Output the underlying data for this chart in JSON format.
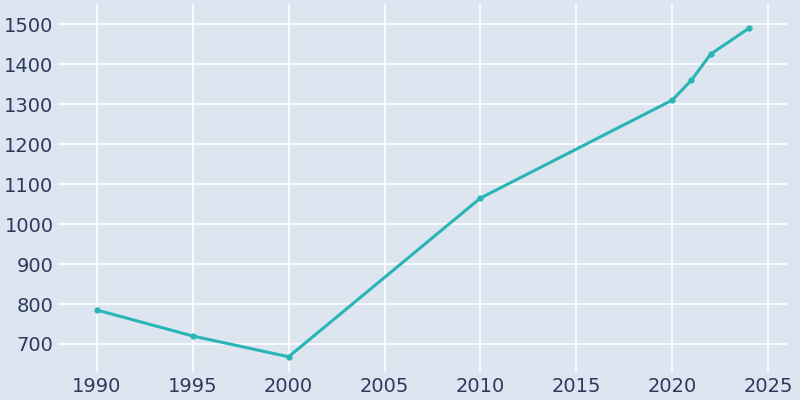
{
  "years": [
    1990,
    1995,
    2000,
    2010,
    2020,
    2021,
    2022,
    2024
  ],
  "population": [
    785,
    720,
    668,
    1065,
    1310,
    1360,
    1425,
    1490
  ],
  "line_color": "#2ab5b5",
  "background_color": "#dce5f0",
  "grid_color": "#c8d4e8",
  "xlim": [
    1988,
    2026
  ],
  "ylim": [
    630,
    1550
  ],
  "xticks": [
    1990,
    1995,
    2000,
    2005,
    2010,
    2015,
    2020,
    2025
  ],
  "yticks": [
    700,
    800,
    900,
    1000,
    1100,
    1200,
    1300,
    1400,
    1500
  ],
  "tick_label_color": "#2d3a5c",
  "tick_fontsize": 14,
  "line_width": 2.2,
  "marker": "o",
  "marker_size": 3.5
}
